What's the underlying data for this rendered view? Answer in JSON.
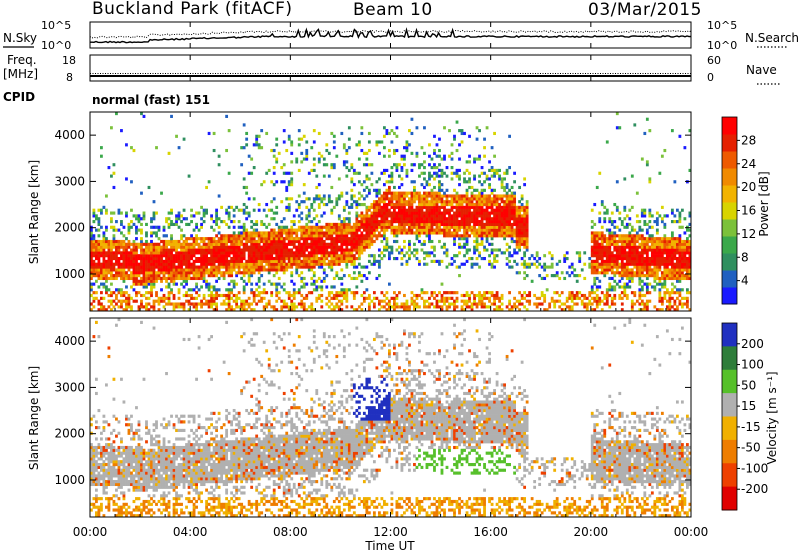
{
  "header": {
    "title": "Buckland Park (fitACF)",
    "beam": "Beam 10",
    "date": "03/Mar/2015"
  },
  "noise_panel": {
    "left_label": "N.Sky",
    "right_label": "N.Search",
    "left_ticks": [
      "10^5",
      "10^0"
    ],
    "right_ticks": [
      "10^5",
      "10^0"
    ]
  },
  "freq_panel": {
    "left_label_line1": "Freq.",
    "left_label_line2": "[MHz]",
    "right_label": "Nave",
    "left_ticks": [
      "18",
      "8"
    ],
    "right_ticks": [
      "60",
      "0"
    ]
  },
  "cpid_panel": {
    "label": "CPID",
    "value": "normal (fast) 151"
  },
  "x_axis": {
    "title": "Time UT",
    "ticks": [
      "00:00",
      "04:00",
      "08:00",
      "12:00",
      "16:00",
      "20:00",
      "00:00"
    ]
  },
  "chart_data": [
    {
      "type": "heatmap",
      "title": "",
      "ylabel": "Slant Range [km]",
      "xlabel": "",
      "xlim": [
        0,
        24
      ],
      "ylim": [
        200,
        4500
      ],
      "y_ticks": [
        "1000",
        "2000",
        "3000",
        "4000"
      ],
      "colorbar": {
        "label": "Power [dB]",
        "ticks": [
          "4",
          "8",
          "12",
          "16",
          "20",
          "24",
          "28"
        ],
        "colors": [
          "#1a1aff",
          "#2060c0",
          "#2f8f5f",
          "#3aa84a",
          "#7bc13a",
          "#d8d400",
          "#f2b300",
          "#f08a00",
          "#ee5a00",
          "#e52000",
          "#ff0000"
        ]
      }
    },
    {
      "type": "heatmap",
      "title": "",
      "ylabel": "Slant Range [km]",
      "xlabel": "Time UT",
      "xlim": [
        0,
        24
      ],
      "ylim": [
        200,
        4500
      ],
      "y_ticks": [
        "1000",
        "2000",
        "3000",
        "4000"
      ],
      "colorbar": {
        "label": "Velocity [m s⁻¹]",
        "ticks": [
          "200",
          "100",
          "50",
          "15",
          "-15",
          "-50",
          "-100",
          "-200"
        ],
        "colors": [
          "#2030c0",
          "#2e7d3a",
          "#56c02a",
          "#b0b0b0",
          "#f0b000",
          "#ee7d00",
          "#ee4000",
          "#e00000"
        ]
      }
    }
  ]
}
